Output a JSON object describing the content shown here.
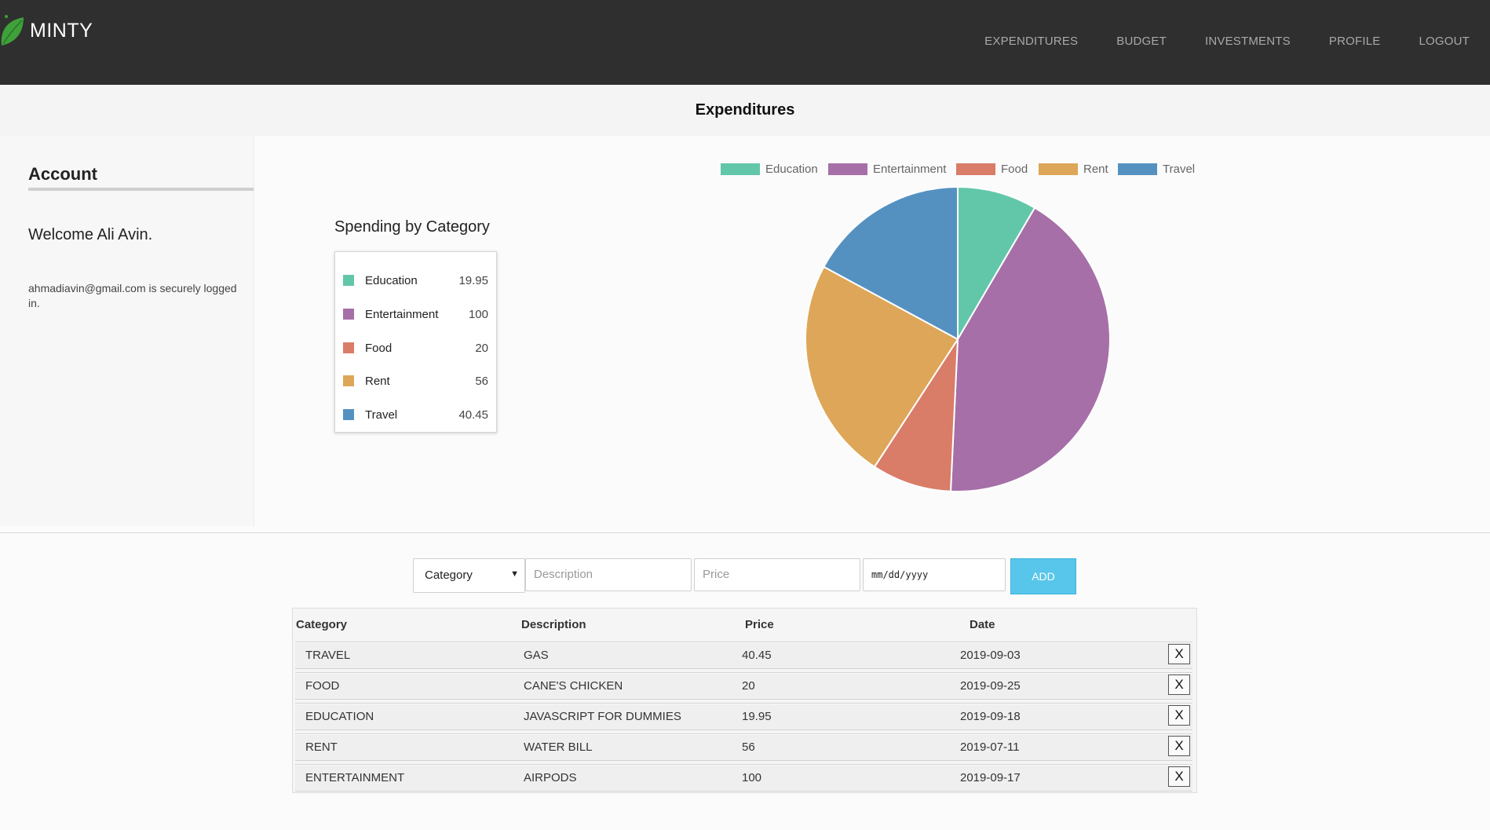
{
  "app": {
    "brand": "MINTY"
  },
  "nav": {
    "items": [
      {
        "label": "EXPENDITURES"
      },
      {
        "label": "BUDGET"
      },
      {
        "label": "INVESTMENTS"
      },
      {
        "label": "PROFILE"
      },
      {
        "label": "LOGOUT"
      }
    ]
  },
  "page": {
    "title": "Expenditures"
  },
  "account": {
    "heading": "Account",
    "welcome": "Welcome Ali Avin.",
    "login_note": "ahmadiavin@gmail.com is securely logged in."
  },
  "spending": {
    "heading": "Spending by Category",
    "items": [
      {
        "name": "Education",
        "value": "19.95",
        "color": "#62c7a9"
      },
      {
        "name": "Entertainment",
        "value": "100",
        "color": "#a66fa8"
      },
      {
        "name": "Food",
        "value": "20",
        "color": "#d97c68"
      },
      {
        "name": "Rent",
        "value": "56",
        "color": "#dea658"
      },
      {
        "name": "Travel",
        "value": "40.45",
        "color": "#5591c0"
      }
    ]
  },
  "chart_data": {
    "type": "pie",
    "categories": [
      "Education",
      "Entertainment",
      "Food",
      "Rent",
      "Travel"
    ],
    "values": [
      19.95,
      100,
      20,
      56,
      40.45
    ],
    "colors": [
      "#62c7a9",
      "#a66fa8",
      "#d97c68",
      "#dea658",
      "#5591c0"
    ],
    "legend_position": "top"
  },
  "form": {
    "category_label": "Category",
    "description_placeholder": "Description",
    "price_placeholder": "Price",
    "date_placeholder": "mm/dd/yyyy",
    "add_label": "ADD"
  },
  "table": {
    "headers": [
      "Category",
      "Description",
      "Price",
      "Date"
    ],
    "delete_label": "X",
    "rows": [
      {
        "category": "TRAVEL",
        "description": "GAS",
        "price": "40.45",
        "date": "2019-09-03"
      },
      {
        "category": "FOOD",
        "description": "CANE'S CHICKEN",
        "price": "20",
        "date": "2019-09-25"
      },
      {
        "category": "EDUCATION",
        "description": "JAVASCRIPT FOR DUMMIES",
        "price": "19.95",
        "date": "2019-09-18"
      },
      {
        "category": "RENT",
        "description": "WATER BILL",
        "price": "56",
        "date": "2019-07-11"
      },
      {
        "category": "ENTERTAINMENT",
        "description": "AIRPODS",
        "price": "100",
        "date": "2019-09-17"
      }
    ]
  }
}
